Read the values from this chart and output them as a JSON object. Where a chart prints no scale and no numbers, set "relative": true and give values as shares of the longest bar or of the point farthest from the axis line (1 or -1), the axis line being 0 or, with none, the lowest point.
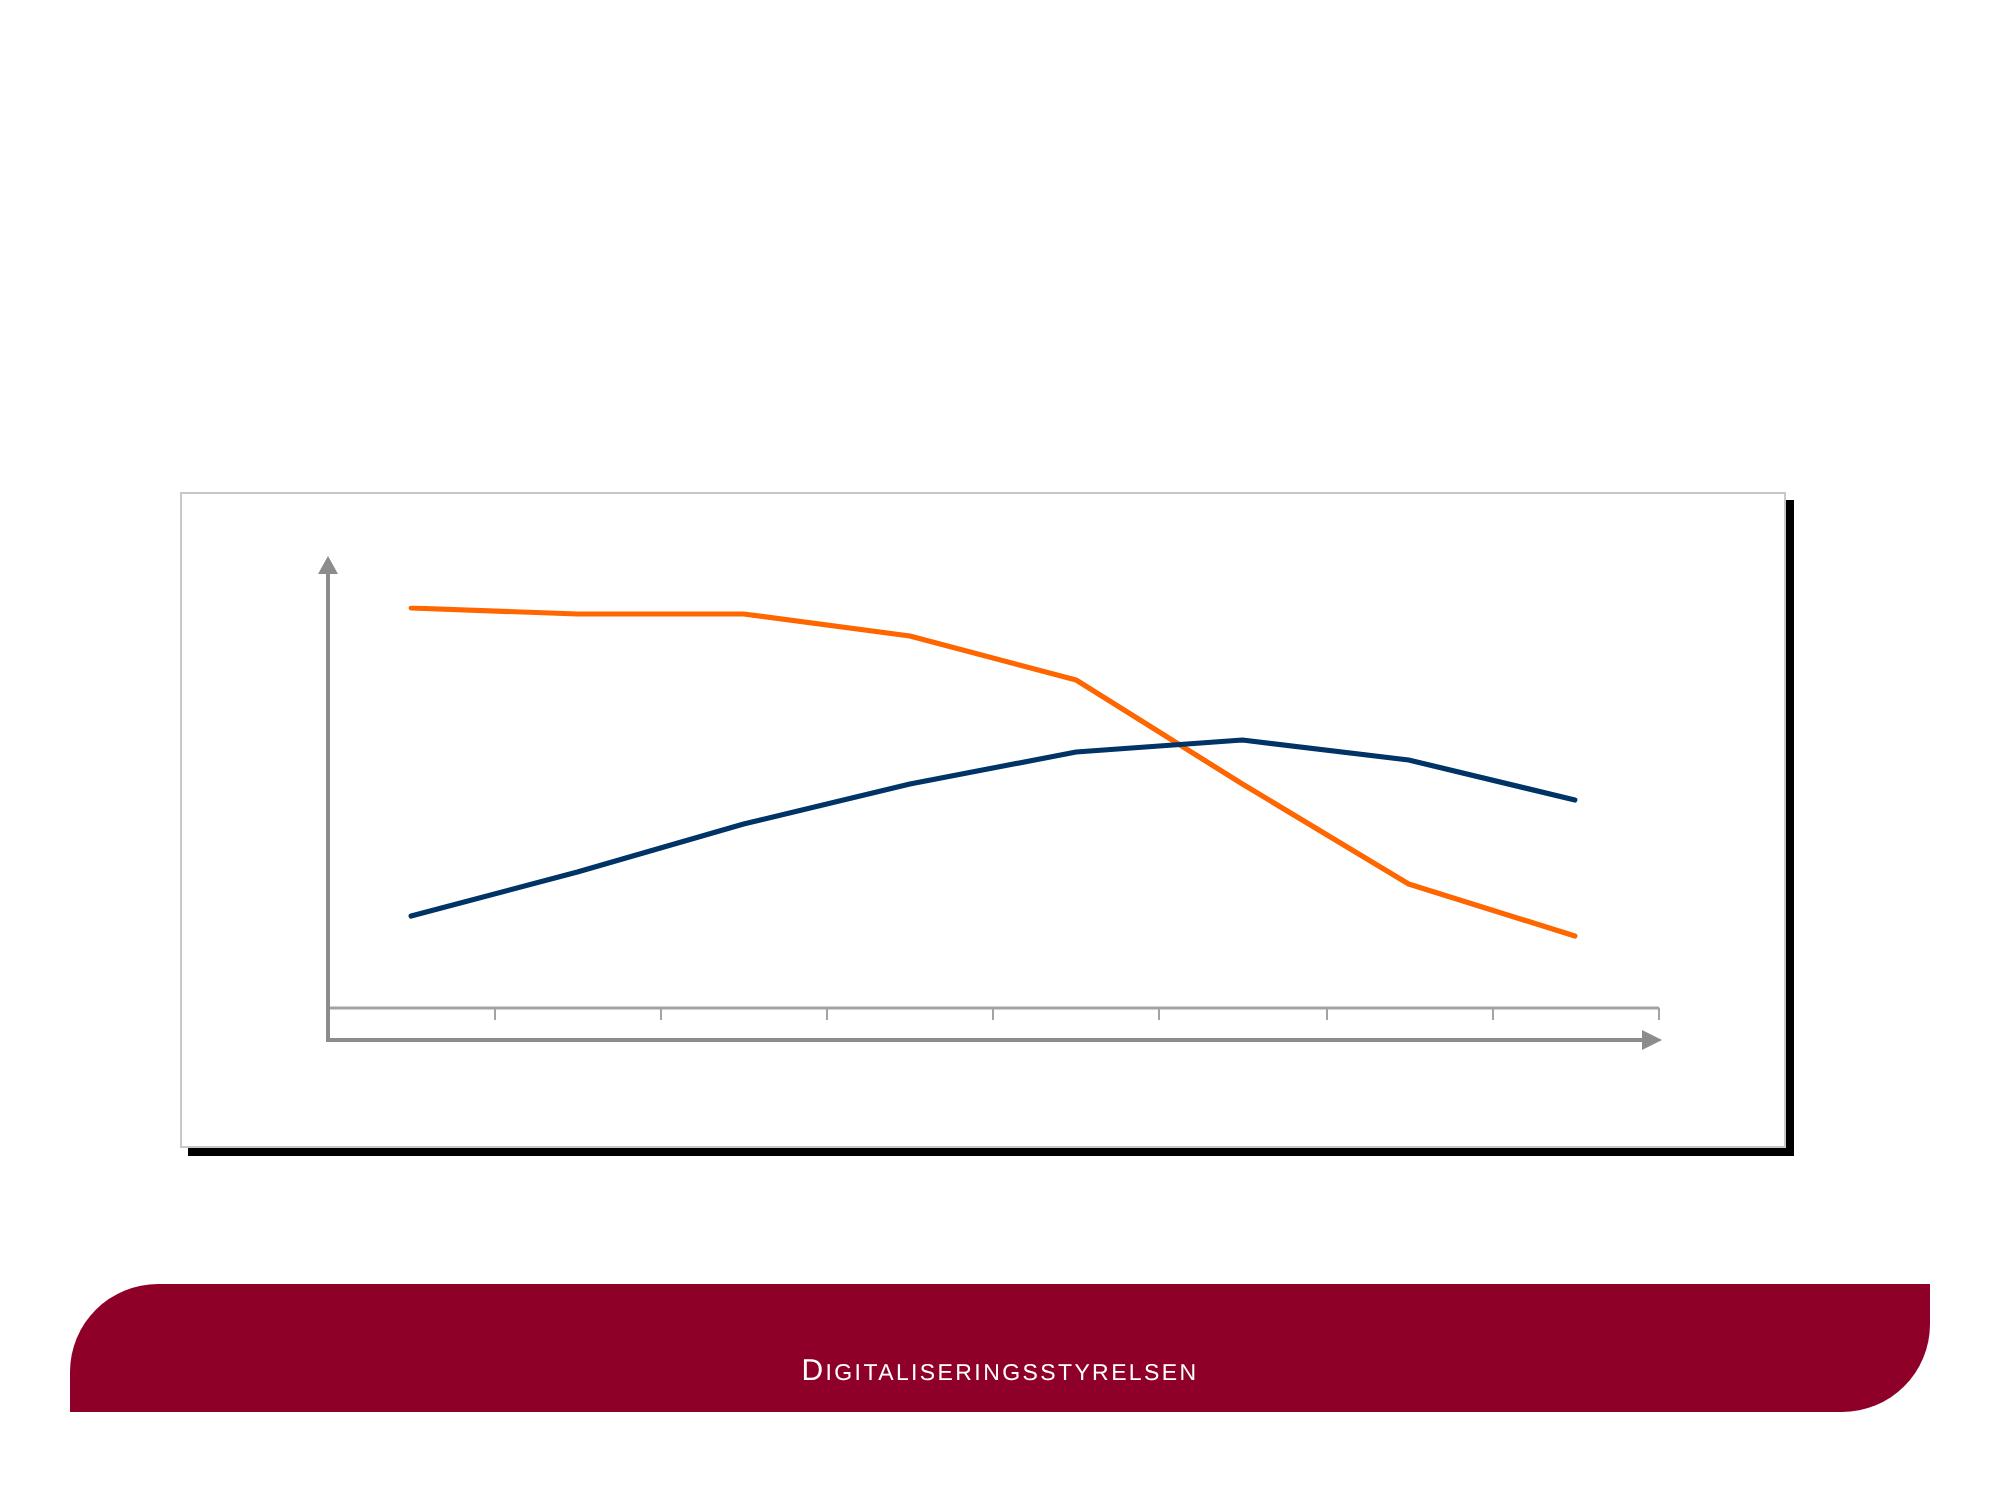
{
  "chart_data": {
    "type": "line",
    "relative": true,
    "categories": [
      null,
      null,
      null,
      null,
      null,
      null,
      null,
      null
    ],
    "series": [
      {
        "color": "#ff6600",
        "values": [
          1.0,
          0.985,
          0.985,
          0.93,
          0.82,
          0.56,
          0.31,
          0.18
        ]
      },
      {
        "color": "#003366",
        "values": [
          0.23,
          0.34,
          0.46,
          0.56,
          0.64,
          0.67,
          0.62,
          0.52
        ]
      }
    ],
    "annotations": [
      "DIGITALISERINGSSTYRELSEN"
    ]
  }
}
